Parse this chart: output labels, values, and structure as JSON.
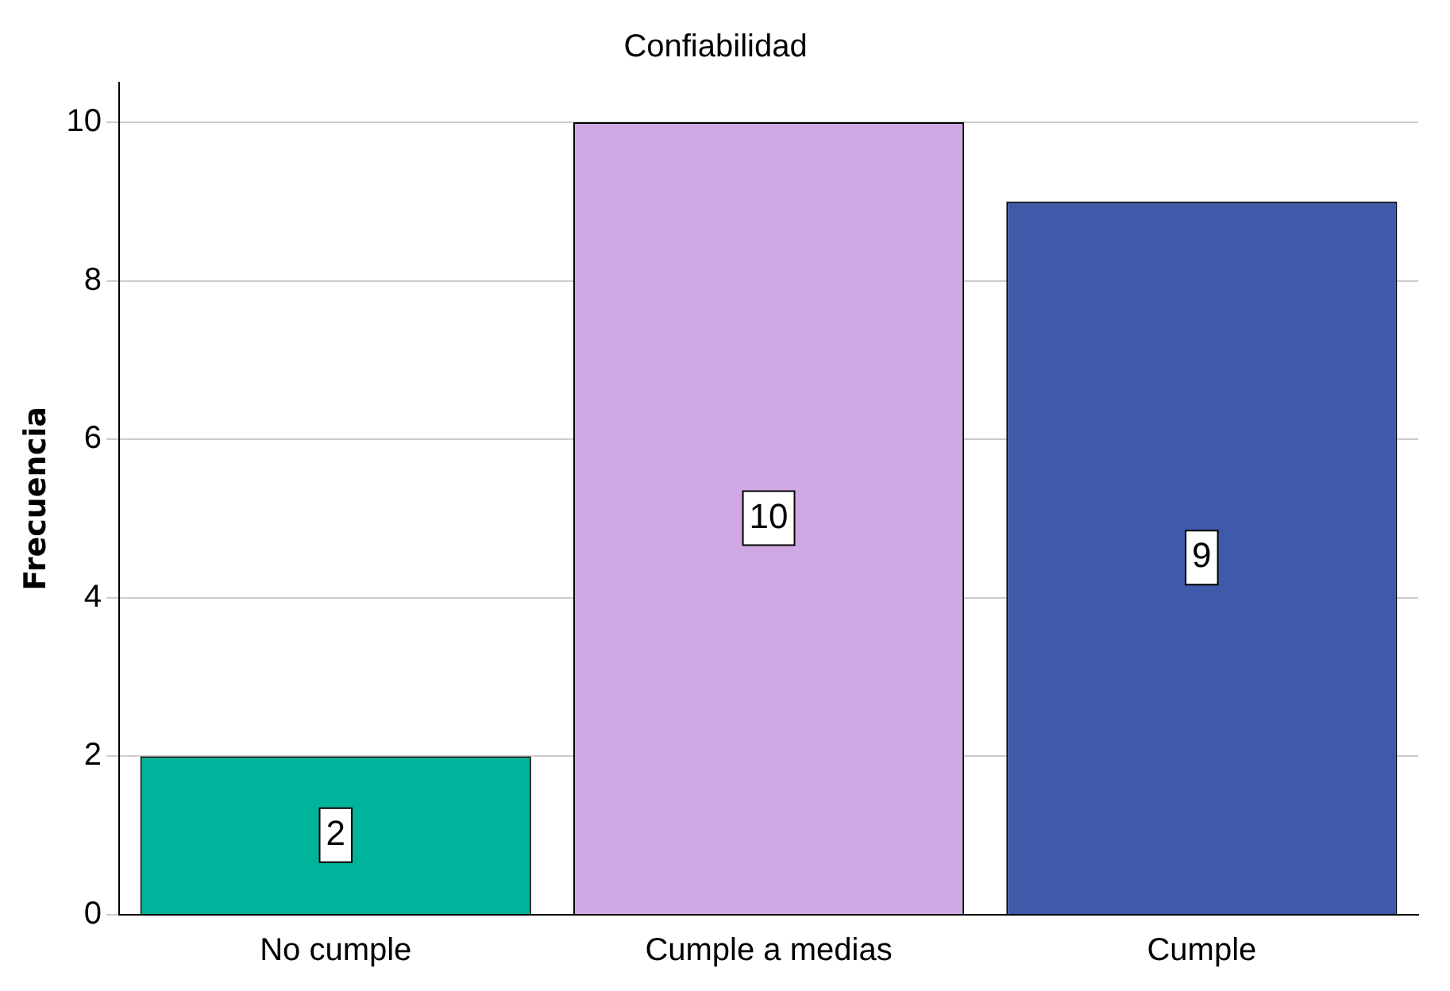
{
  "chart_data": {
    "type": "bar",
    "title": "Confiabilidad",
    "ylabel": "Frecuencia",
    "categories": [
      "No cumple",
      "Cumple a medias",
      "Cumple"
    ],
    "values": [
      2,
      10,
      9
    ],
    "colors": [
      "#00b39b",
      "#d0a8e4",
      "#3f5aa8"
    ],
    "ylim": [
      0,
      10.5
    ],
    "yticks": [
      0,
      2,
      4,
      6,
      8,
      10
    ],
    "grid": "y",
    "data_labels": true
  }
}
